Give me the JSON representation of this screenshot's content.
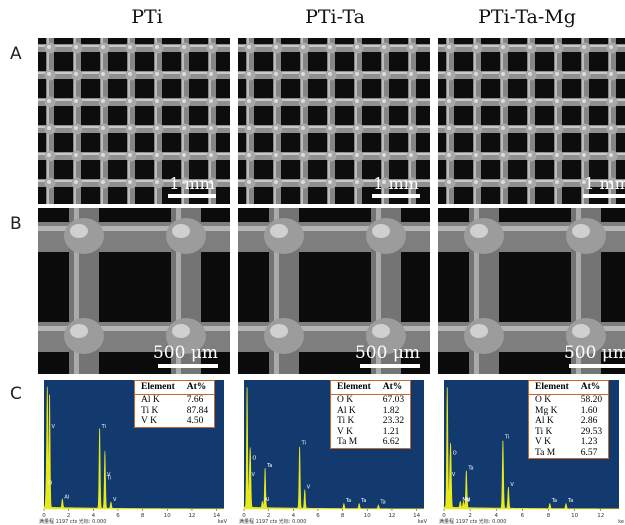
{
  "columns": [
    {
      "title": "PTi"
    },
    {
      "title": "PTi-Ta"
    },
    {
      "title": "PTi-Ta-Mg"
    }
  ],
  "row_labels": {
    "a": "A",
    "b": "B",
    "c": "C"
  },
  "scale_bars": {
    "row_a": [
      "1 mm",
      "1 mm",
      "1 mm"
    ],
    "row_b": [
      "500 μm",
      "500 μm",
      "500 μm"
    ]
  },
  "eds": [
    {
      "header": [
        "Element",
        "At%"
      ],
      "rows": [
        [
          "Al K",
          "7.66"
        ],
        [
          "Ti K",
          "87.84"
        ],
        [
          "V K",
          "4.50"
        ]
      ],
      "peak_labels": [
        "O",
        "V",
        "Ti",
        "Ti",
        "Al",
        "Ti",
        "V",
        "V"
      ],
      "footer": "满量程 1197 cts 光标: 0.000",
      "axis_ticks": [
        "0",
        "2",
        "4",
        "6",
        "8",
        "10",
        "12",
        "14"
      ],
      "kev_label": "keV"
    },
    {
      "header": [
        "Element",
        "At%"
      ],
      "rows": [
        [
          "O K",
          "67.03"
        ],
        [
          "Al K",
          "1.82"
        ],
        [
          "Ti K",
          "23.32"
        ],
        [
          "V K",
          "1.21"
        ],
        [
          "Ta M",
          "6.62"
        ]
      ],
      "peak_labels": [
        "O",
        "V",
        "Ti",
        "Ti",
        "Al",
        "Ta",
        "Ta",
        "Ta",
        "Ti",
        "V",
        "Ta",
        "Ta",
        "Ta",
        "Ta",
        "Ta"
      ],
      "footer": "满量程 1197 cts 光标: 0.000",
      "axis_ticks": [
        "0",
        "2",
        "4",
        "6",
        "8",
        "10",
        "12",
        "14"
      ],
      "kev_label": "keV"
    },
    {
      "header": [
        "Element",
        "At%"
      ],
      "rows": [
        [
          "O K",
          "58.20"
        ],
        [
          "Mg K",
          "1.60"
        ],
        [
          "Al K",
          "2.86"
        ],
        [
          "Ti K",
          "29.53"
        ],
        [
          "V K",
          "1.23"
        ],
        [
          "Ta M",
          "6.57"
        ]
      ],
      "peak_labels": [
        "O",
        "V",
        "Ti",
        "Mg",
        "Al",
        "Ta",
        "Ta",
        "Ta",
        "Ti",
        "V",
        "Ta",
        "Ta",
        "Ta",
        "Ta"
      ],
      "footer": "满量程 1197 cts 光标: 0.000",
      "axis_ticks": [
        "0",
        "2",
        "4",
        "6",
        "8",
        "10",
        "12"
      ],
      "kev_label": "ke"
    }
  ],
  "colors": {
    "eds_background": "#123a6e",
    "eds_spectrum": "#e9ea1a",
    "table_border": "#c8692c",
    "sem_dark": "#0c0c0c",
    "sem_strut": "#9a9a9a"
  }
}
